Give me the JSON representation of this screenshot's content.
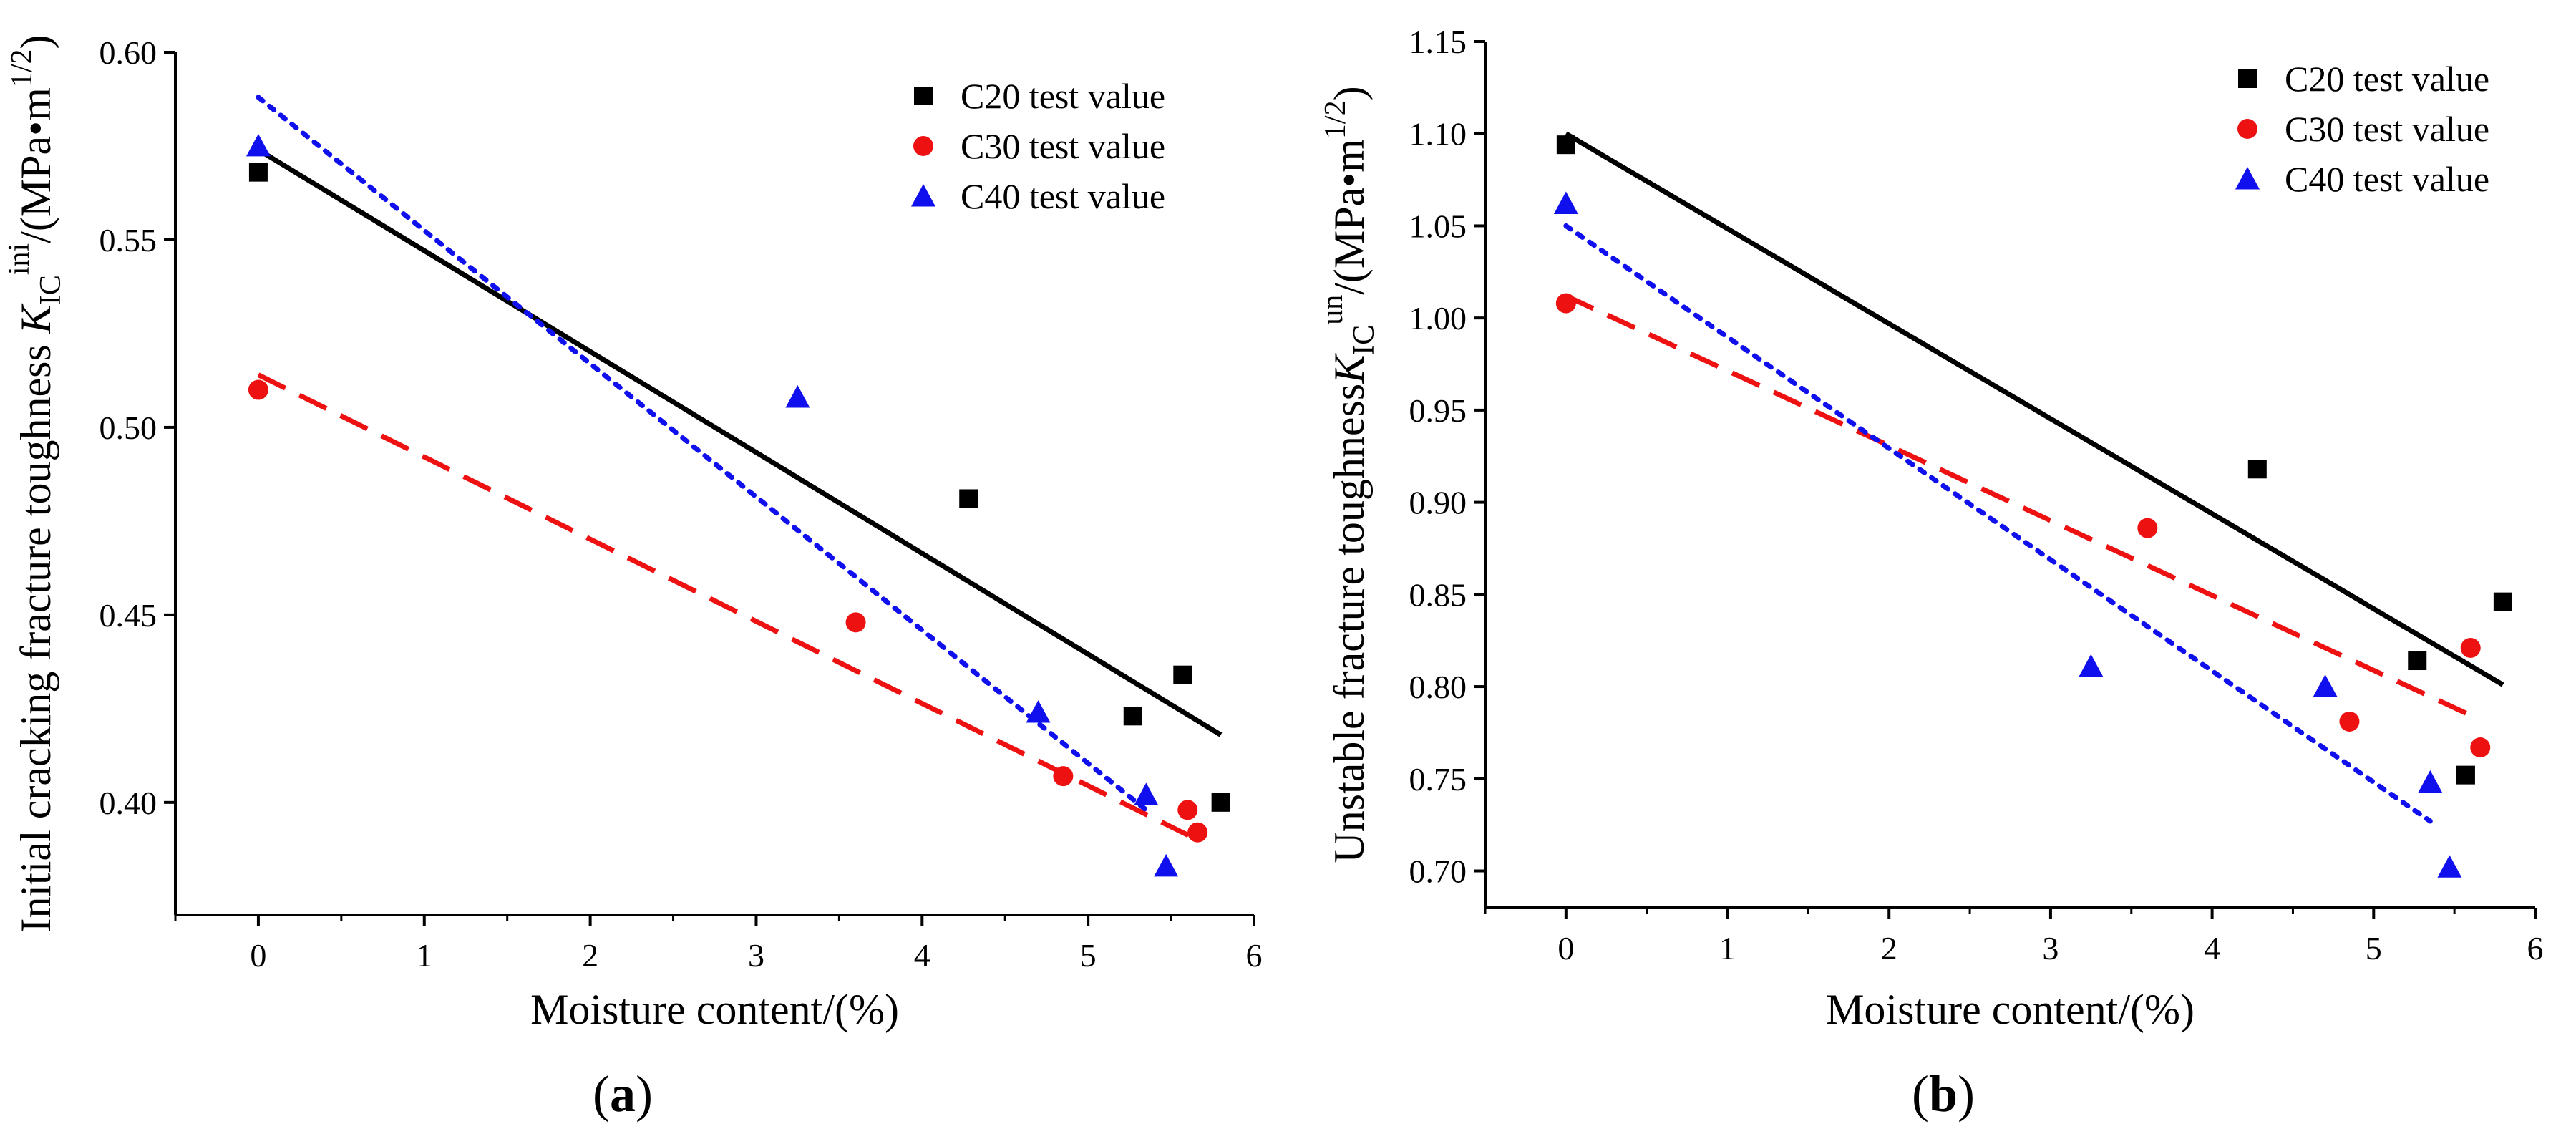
{
  "chart_data": [
    {
      "panel": "a",
      "type": "scatter",
      "panel_label_prefix": "(",
      "panel_label_letter": "a",
      "panel_label_suffix": ")",
      "xlabel": "Moisture content/(%)",
      "ylabel_prefix": "Initial cracking fracture toughness ",
      "ylabel_symbol": "K",
      "ylabel_sub": "IC",
      "ylabel_sup": "ini",
      "ylabel_unit": "/(MPa•m",
      "ylabel_unit_sup": "1/2",
      "ylabel_close": ")",
      "xlim": [
        -0.5,
        6
      ],
      "ylim": [
        0.37,
        0.6
      ],
      "xticks": [
        "0",
        "1",
        "2",
        "3",
        "4",
        "5",
        "6"
      ],
      "yticks": [
        "0.40",
        "0.45",
        "0.50",
        "0.55",
        "0.60"
      ],
      "legend_position": "top-right",
      "series": [
        {
          "name": "C20 test value",
          "marker": "square",
          "color": "#000000",
          "x": [
            0,
            4.28,
            5.27,
            5.57,
            5.8
          ],
          "y": [
            0.568,
            0.481,
            0.423,
            0.434,
            0.4
          ]
        },
        {
          "name": "C30 test value",
          "marker": "circle",
          "color": "#ee1111",
          "x": [
            0,
            3.6,
            4.85,
            5.6,
            5.66
          ],
          "y": [
            0.51,
            0.448,
            0.407,
            0.398,
            0.392
          ]
        },
        {
          "name": "C40 test value",
          "marker": "triangle",
          "color": "#1010ee",
          "x": [
            0,
            3.25,
            4.7,
            5.35,
            5.47
          ],
          "y": [
            0.575,
            0.508,
            0.424,
            0.402,
            0.383
          ]
        }
      ],
      "fit_lines": [
        {
          "series": "C20 test value",
          "style": "solid",
          "color": "#000000",
          "x": [
            0,
            5.8
          ],
          "y": [
            0.574,
            0.418
          ]
        },
        {
          "series": "C30 test value",
          "style": "dashed",
          "color": "#ee1111",
          "x": [
            0,
            5.66
          ],
          "y": [
            0.514,
            0.39
          ]
        },
        {
          "series": "C40 test value",
          "style": "dotted",
          "color": "#1010ee",
          "x": [
            0,
            5.35
          ],
          "y": [
            0.588,
            0.398
          ]
        }
      ]
    },
    {
      "panel": "b",
      "type": "scatter",
      "panel_label_prefix": "(",
      "panel_label_letter": "b",
      "panel_label_suffix": ")",
      "xlabel": "Moisture content/(%)",
      "ylabel_prefix": "Unstable fracture toughness",
      "ylabel_symbol": "K",
      "ylabel_sub": "IC",
      "ylabel_sup": "un",
      "ylabel_unit": "/(MPa•m",
      "ylabel_unit_sup": "1/2",
      "ylabel_close": ")",
      "xlim": [
        -0.5,
        6
      ],
      "ylim": [
        0.68,
        1.15
      ],
      "xticks": [
        "0",
        "1",
        "2",
        "3",
        "4",
        "5",
        "6"
      ],
      "yticks": [
        "0.70",
        "0.75",
        "0.80",
        "0.85",
        "0.90",
        "0.95",
        "1.00",
        "1.05",
        "1.10",
        "1.15"
      ],
      "legend_position": "top-right",
      "series": [
        {
          "name": "C20 test value",
          "marker": "square",
          "color": "#000000",
          "x": [
            0,
            4.28,
            5.27,
            5.57,
            5.8
          ],
          "y": [
            1.094,
            0.918,
            0.814,
            0.752,
            0.846
          ]
        },
        {
          "name": "C30 test value",
          "marker": "circle",
          "color": "#ee1111",
          "x": [
            0,
            3.6,
            4.85,
            5.6,
            5.66
          ],
          "y": [
            1.008,
            0.886,
            0.781,
            0.821,
            0.767
          ]
        },
        {
          "name": "C40 test value",
          "marker": "triangle",
          "color": "#1010ee",
          "x": [
            0,
            3.25,
            4.7,
            5.35,
            5.47
          ],
          "y": [
            1.062,
            0.811,
            0.8,
            0.748,
            0.702
          ]
        }
      ],
      "fit_lines": [
        {
          "series": "C20 test value",
          "style": "solid",
          "color": "#000000",
          "x": [
            0,
            5.8
          ],
          "y": [
            1.1,
            0.801
          ]
        },
        {
          "series": "C30 test value",
          "style": "dashed",
          "color": "#ee1111",
          "x": [
            0,
            5.66
          ],
          "y": [
            1.012,
            0.782
          ]
        },
        {
          "series": "C40 test value",
          "style": "dotted",
          "color": "#1010ee",
          "x": [
            0,
            5.35
          ],
          "y": [
            1.05,
            0.727
          ]
        }
      ]
    }
  ]
}
